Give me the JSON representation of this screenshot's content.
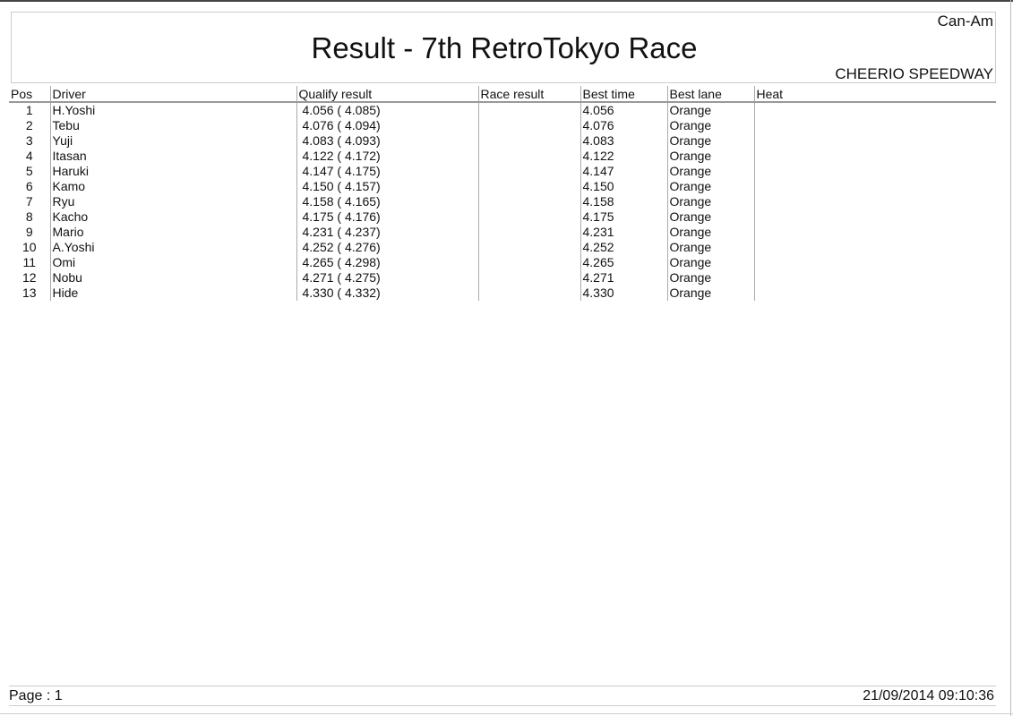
{
  "header": {
    "category": "Can-Am",
    "title": "Result - 7th RetroTokyo Race",
    "venue": "CHEERIO SPEEDWAY"
  },
  "table": {
    "columns": [
      "Pos",
      "Driver",
      "Qualify result",
      "Race result",
      "Best time",
      "Best lane",
      "Heat"
    ],
    "rows": [
      {
        "pos": "1",
        "driver": "H.Yoshi",
        "qualify": "4.056 ( 4.085)",
        "race": "",
        "best_time": "4.056",
        "best_lane": "Orange",
        "heat": ""
      },
      {
        "pos": "2",
        "driver": "Tebu",
        "qualify": "4.076 ( 4.094)",
        "race": "",
        "best_time": "4.076",
        "best_lane": "Orange",
        "heat": ""
      },
      {
        "pos": "3",
        "driver": "Yuji",
        "qualify": "4.083 ( 4.093)",
        "race": "",
        "best_time": "4.083",
        "best_lane": "Orange",
        "heat": ""
      },
      {
        "pos": "4",
        "driver": "Itasan",
        "qualify": "4.122 ( 4.172)",
        "race": "",
        "best_time": "4.122",
        "best_lane": "Orange",
        "heat": ""
      },
      {
        "pos": "5",
        "driver": "Haruki",
        "qualify": "4.147 ( 4.175)",
        "race": "",
        "best_time": "4.147",
        "best_lane": "Orange",
        "heat": ""
      },
      {
        "pos": "6",
        "driver": "Kamo",
        "qualify": "4.150 ( 4.157)",
        "race": "",
        "best_time": "4.150",
        "best_lane": "Orange",
        "heat": ""
      },
      {
        "pos": "7",
        "driver": "Ryu",
        "qualify": "4.158 ( 4.165)",
        "race": "",
        "best_time": "4.158",
        "best_lane": "Orange",
        "heat": ""
      },
      {
        "pos": "8",
        "driver": "Kacho",
        "qualify": "4.175 ( 4.176)",
        "race": "",
        "best_time": "4.175",
        "best_lane": "Orange",
        "heat": ""
      },
      {
        "pos": "9",
        "driver": "Mario",
        "qualify": "4.231 ( 4.237)",
        "race": "",
        "best_time": "4.231",
        "best_lane": "Orange",
        "heat": ""
      },
      {
        "pos": "10",
        "driver": "A.Yoshi",
        "qualify": "4.252 ( 4.276)",
        "race": "",
        "best_time": "4.252",
        "best_lane": "Orange",
        "heat": ""
      },
      {
        "pos": "11",
        "driver": "Omi",
        "qualify": "4.265 ( 4.298)",
        "race": "",
        "best_time": "4.265",
        "best_lane": "Orange",
        "heat": ""
      },
      {
        "pos": "12",
        "driver": "Nobu",
        "qualify": "4.271 ( 4.275)",
        "race": "",
        "best_time": "4.271",
        "best_lane": "Orange",
        "heat": ""
      },
      {
        "pos": "13",
        "driver": "Hide",
        "qualify": "4.330 ( 4.332)",
        "race": "",
        "best_time": "4.330",
        "best_lane": "Orange",
        "heat": ""
      }
    ]
  },
  "footer": {
    "page": "Page : 1",
    "timestamp": "21/09/2014  09:10:36"
  }
}
